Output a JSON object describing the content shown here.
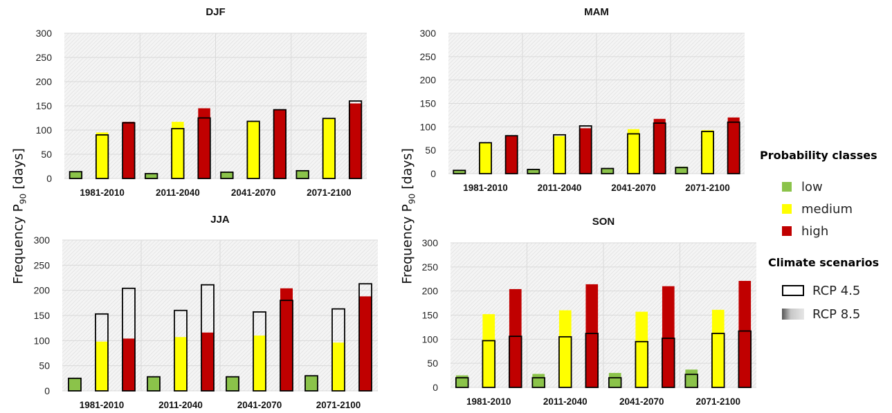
{
  "y_axis_label": {
    "main": "Frequency P",
    "sub": "90",
    "unit": " [days]"
  },
  "legend": {
    "probability_title": "Probability classes",
    "probability_classes": [
      {
        "label": "low",
        "color": "#8bc34a"
      },
      {
        "label": "medium",
        "color": "#ffff00"
      },
      {
        "label": "high",
        "color": "#c00000"
      }
    ],
    "scenario_title": "Climate scenarios",
    "scenarios": [
      {
        "label": "RCP 4.5",
        "style": "outline"
      },
      {
        "label": "RCP 8.5",
        "style": "shaded-fill"
      }
    ]
  },
  "chart_data": [
    {
      "type": "bar",
      "title": "DJF",
      "categories": [
        "1981-2010",
        "2011-2040",
        "2041-2070",
        "2071-2100"
      ],
      "ylim": [
        0,
        300
      ],
      "yticks": [
        0,
        50,
        100,
        150,
        200,
        250,
        300
      ],
      "series": [
        {
          "name": "low",
          "rcp45": [
            14,
            10,
            13,
            16
          ],
          "rcp85": [
            14,
            10,
            13,
            16
          ]
        },
        {
          "name": "medium",
          "rcp45": [
            90,
            103,
            118,
            124
          ],
          "rcp85": [
            95,
            117,
            118,
            124
          ]
        },
        {
          "name": "high",
          "rcp45": [
            115,
            125,
            142,
            160
          ],
          "rcp85": [
            117,
            145,
            142,
            155
          ]
        }
      ]
    },
    {
      "type": "bar",
      "title": "MAM",
      "categories": [
        "1981-2010",
        "2011-2040",
        "2041-2070",
        "2071-2100"
      ],
      "ylim": [
        0,
        300
      ],
      "yticks": [
        0,
        50,
        100,
        150,
        200,
        250,
        300
      ],
      "series": [
        {
          "name": "low",
          "rcp45": [
            7,
            9,
            11,
            13
          ],
          "rcp85": [
            7,
            9,
            11,
            15
          ]
        },
        {
          "name": "medium",
          "rcp45": [
            66,
            83,
            85,
            90
          ],
          "rcp85": [
            66,
            80,
            95,
            93
          ]
        },
        {
          "name": "high",
          "rcp45": [
            81,
            102,
            108,
            110
          ],
          "rcp85": [
            82,
            97,
            117,
            120
          ]
        }
      ]
    },
    {
      "type": "bar",
      "title": "JJA",
      "categories": [
        "1981-2010",
        "2011-2040",
        "2041-2070",
        "2071-2100"
      ],
      "ylim": [
        0,
        300
      ],
      "yticks": [
        0,
        50,
        100,
        150,
        200,
        250,
        300
      ],
      "series": [
        {
          "name": "low",
          "rcp45": [
            25,
            28,
            28,
            30
          ],
          "rcp85": [
            25,
            28,
            28,
            30
          ]
        },
        {
          "name": "medium",
          "rcp45": [
            153,
            160,
            157,
            163
          ],
          "rcp85": [
            98,
            107,
            110,
            96
          ]
        },
        {
          "name": "high",
          "rcp45": [
            204,
            211,
            180,
            213
          ],
          "rcp85": [
            104,
            116,
            204,
            188
          ]
        }
      ]
    },
    {
      "type": "bar",
      "title": "SON",
      "categories": [
        "1981-2010",
        "2011-2040",
        "2041-2070",
        "2071-2100"
      ],
      "ylim": [
        0,
        300
      ],
      "yticks": [
        0,
        50,
        100,
        150,
        200,
        250,
        300
      ],
      "series": [
        {
          "name": "low",
          "rcp45": [
            20,
            20,
            20,
            27
          ],
          "rcp85": [
            25,
            28,
            30,
            37
          ]
        },
        {
          "name": "medium",
          "rcp45": [
            97,
            105,
            95,
            112
          ],
          "rcp85": [
            152,
            160,
            157,
            161
          ]
        },
        {
          "name": "high",
          "rcp45": [
            106,
            112,
            102,
            117
          ],
          "rcp85": [
            204,
            214,
            210,
            221
          ]
        }
      ]
    }
  ]
}
